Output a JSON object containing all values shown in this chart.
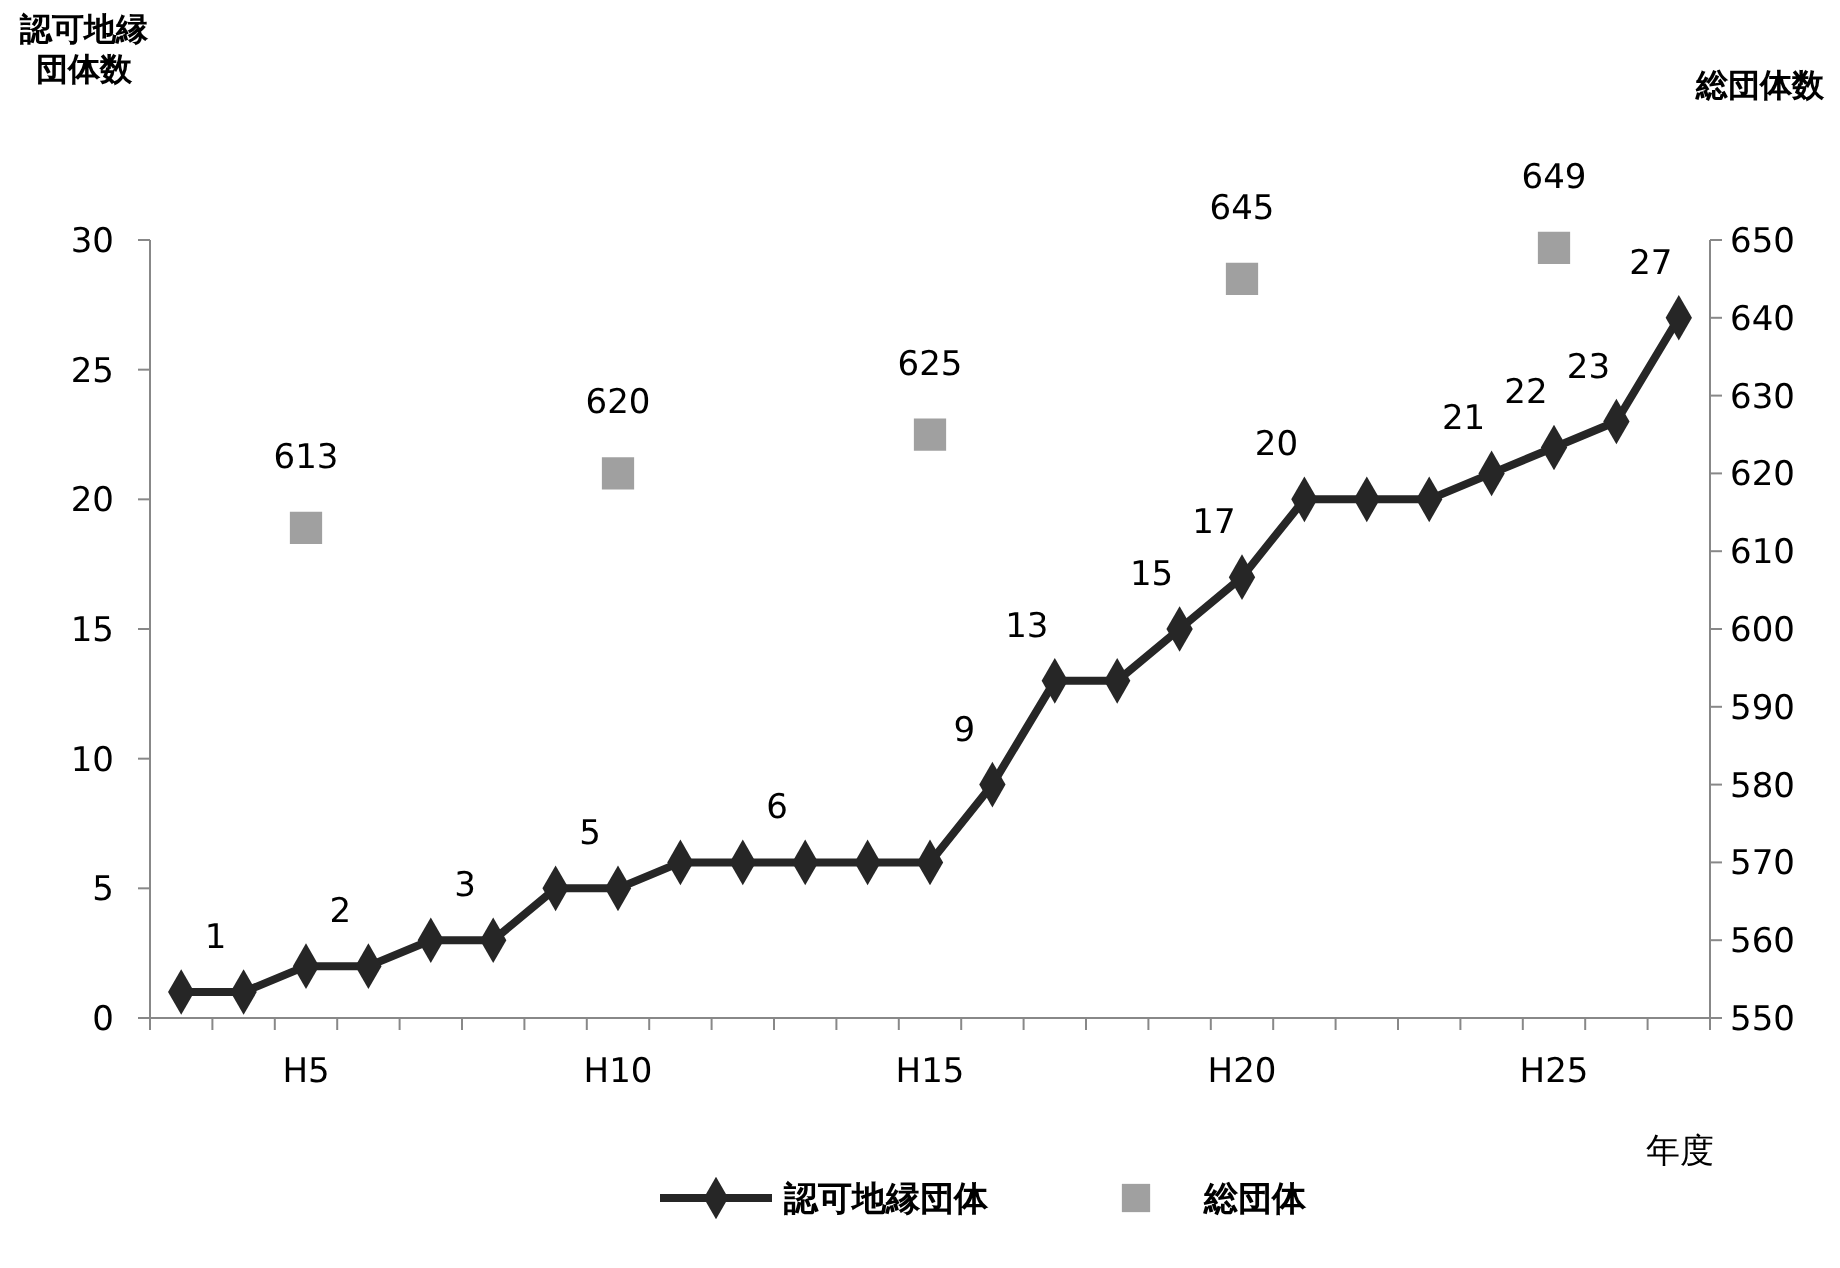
{
  "chart_data": {
    "type": "line",
    "ylabel": "認可地縁団体数",
    "y2label": "総団体数",
    "xlabel": "年度",
    "categories": [
      null,
      null,
      "H5",
      null,
      null,
      null,
      null,
      "H10",
      null,
      null,
      null,
      null,
      "H15",
      null,
      null,
      null,
      null,
      "H20",
      null,
      null,
      null,
      null,
      "H25",
      null,
      null
    ],
    "series": [
      {
        "name": "認可地縁団体",
        "color": "#262626",
        "marker": "diamond",
        "line_style": "solid",
        "values": [
          1,
          1,
          2,
          2,
          3,
          3,
          5,
          5,
          6,
          6,
          6,
          6,
          6,
          9,
          13,
          13,
          15,
          17,
          20,
          20,
          20,
          21,
          22,
          23,
          27
        ],
        "value_labels": [
          null,
          "1",
          null,
          "2",
          null,
          "3",
          null,
          "5",
          null,
          null,
          "6",
          null,
          null,
          "9",
          "13",
          null,
          "15",
          "17",
          "20",
          null,
          null,
          "21",
          "22",
          "23",
          "27"
        ]
      },
      {
        "name": "総団体",
        "type": "scatter",
        "axis": "y2",
        "color": "#a0a0a0",
        "marker": "square",
        "values": [
          null,
          null,
          613,
          null,
          null,
          null,
          null,
          620,
          null,
          null,
          null,
          null,
          625,
          null,
          null,
          null,
          null,
          645,
          null,
          null,
          null,
          null,
          649,
          null,
          null
        ],
        "value_labels": [
          null,
          null,
          "613",
          null,
          null,
          null,
          null,
          "620",
          null,
          null,
          null,
          null,
          "625",
          null,
          null,
          null,
          null,
          "645",
          null,
          null,
          null,
          null,
          "649",
          null,
          null
        ]
      }
    ],
    "ylim": [
      0,
      30
    ],
    "yticks": [
      0,
      5,
      10,
      15,
      20,
      25,
      30
    ],
    "y2lim": [
      550,
      650
    ],
    "y2ticks": [
      550,
      560,
      570,
      580,
      590,
      600,
      610,
      620,
      630,
      640,
      650
    ],
    "grid": false,
    "legend": "bottom"
  }
}
